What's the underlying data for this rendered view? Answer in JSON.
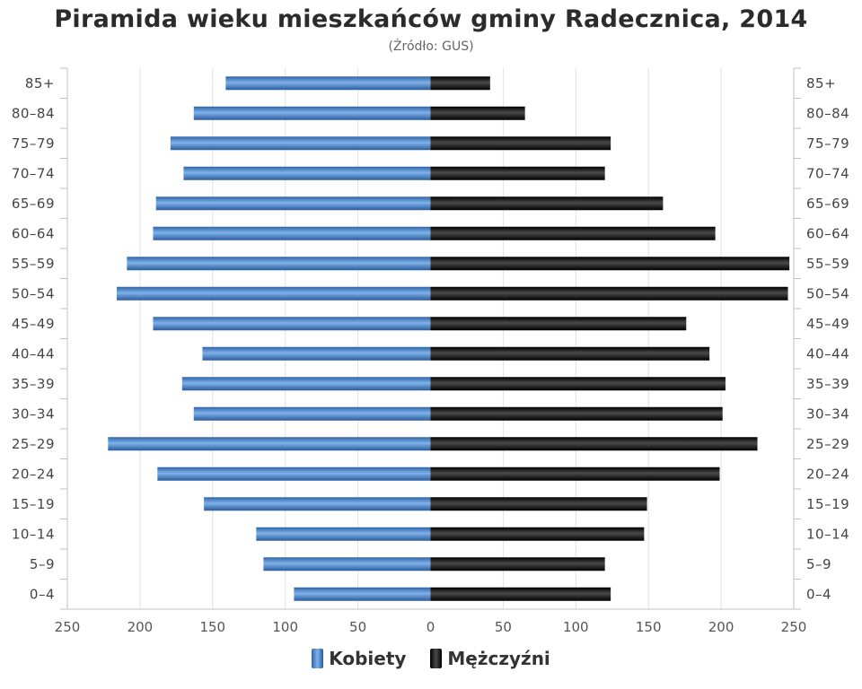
{
  "chart_data": {
    "type": "bar",
    "title": "Piramida wieku mieszkańców gminy Radecznica, 2014",
    "subtitle": "(Źródło: GUS)",
    "categories": [
      "85+",
      "80–84",
      "75–79",
      "70–74",
      "65–69",
      "60–64",
      "55–59",
      "50–54",
      "45–49",
      "40–44",
      "35–39",
      "30–34",
      "25–29",
      "20–24",
      "15–19",
      "10–14",
      "5–9",
      "0–4"
    ],
    "series": [
      {
        "name": "Kobiety",
        "color": "#4a86c8",
        "values": [
          141,
          163,
          179,
          170,
          189,
          191,
          209,
          216,
          191,
          157,
          171,
          163,
          222,
          188,
          156,
          120,
          115,
          94
        ]
      },
      {
        "name": "Mężczyźni",
        "color": "#1a1a1a",
        "values": [
          41,
          65,
          124,
          120,
          160,
          196,
          247,
          246,
          176,
          192,
          203,
          201,
          225,
          199,
          149,
          147,
          120,
          124
        ]
      }
    ],
    "xlim": [
      -250,
      250
    ],
    "x_ticks": [
      -250,
      -200,
      -150,
      -100,
      -50,
      0,
      50,
      100,
      150,
      200,
      250
    ],
    "x_tick_labels": [
      "250",
      "200",
      "150",
      "100",
      "50",
      "0",
      "50",
      "100",
      "150",
      "200",
      "250"
    ],
    "grid": true,
    "legend_position": "bottom"
  }
}
